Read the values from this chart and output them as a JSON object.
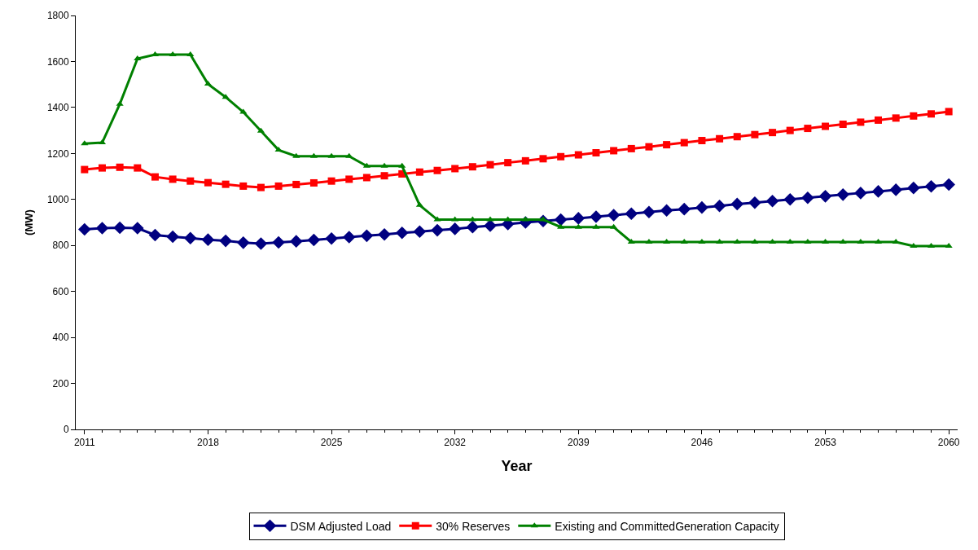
{
  "chart_data": {
    "type": "line",
    "xlabel": "Year",
    "ylabel": "(MW)",
    "x": [
      2011,
      2012,
      2013,
      2014,
      2015,
      2016,
      2017,
      2018,
      2019,
      2020,
      2021,
      2022,
      2023,
      2024,
      2025,
      2026,
      2027,
      2028,
      2029,
      2030,
      2031,
      2032,
      2033,
      2034,
      2035,
      2036,
      2037,
      2038,
      2039,
      2040,
      2041,
      2042,
      2043,
      2044,
      2045,
      2046,
      2047,
      2048,
      2049,
      2050,
      2051,
      2052,
      2053,
      2054,
      2055,
      2056,
      2057,
      2058,
      2059,
      2060
    ],
    "xlim": [
      2010.5,
      2060.5
    ],
    "xticks": [
      2011,
      2018,
      2025,
      2032,
      2039,
      2046,
      2053,
      2060
    ],
    "ylim": [
      0,
      1800
    ],
    "yticks": [
      0,
      200,
      400,
      600,
      800,
      1000,
      1200,
      1400,
      1600,
      1800
    ],
    "grid": false,
    "legend": "bottom",
    "line_style": "solid",
    "series": [
      {
        "name": "DSM Adjusted Load",
        "color": "#000080",
        "marker": "diamond",
        "values": [
          870,
          875,
          877,
          875,
          845,
          838,
          832,
          825,
          820,
          812,
          808,
          813,
          818,
          824,
          830,
          836,
          842,
          848,
          855,
          860,
          866,
          872,
          880,
          886,
          893,
          900,
          906,
          912,
          918,
          925,
          932,
          938,
          945,
          952,
          958,
          965,
          972,
          980,
          986,
          993,
          1000,
          1007,
          1014,
          1021,
          1028,
          1035,
          1042,
          1050,
          1057,
          1065
        ]
      },
      {
        "name": "30% Reserves",
        "color": "#ff0000",
        "marker": "square",
        "values": [
          1130,
          1137,
          1140,
          1137,
          1098,
          1088,
          1080,
          1073,
          1066,
          1058,
          1052,
          1058,
          1065,
          1072,
          1080,
          1088,
          1095,
          1103,
          1111,
          1119,
          1126,
          1134,
          1142,
          1151,
          1160,
          1168,
          1177,
          1186,
          1194,
          1203,
          1212,
          1221,
          1229,
          1238,
          1247,
          1256,
          1264,
          1273,
          1282,
          1291,
          1300,
          1309,
          1318,
          1327,
          1336,
          1345,
          1354,
          1363,
          1372,
          1382
        ]
      },
      {
        "name": "Existing and CommittedGeneration Capacity",
        "color": "#008000",
        "marker": "triangle",
        "values": [
          1243,
          1247,
          1415,
          1612,
          1630,
          1630,
          1630,
          1502,
          1445,
          1380,
          1298,
          1215,
          1188,
          1188,
          1188,
          1188,
          1145,
          1145,
          1145,
          975,
          912,
          912,
          912,
          912,
          912,
          912,
          912,
          880,
          880,
          880,
          880,
          815,
          815,
          815,
          815,
          815,
          815,
          815,
          815,
          815,
          815,
          815,
          815,
          815,
          815,
          815,
          815,
          797,
          797,
          797
        ]
      }
    ]
  }
}
